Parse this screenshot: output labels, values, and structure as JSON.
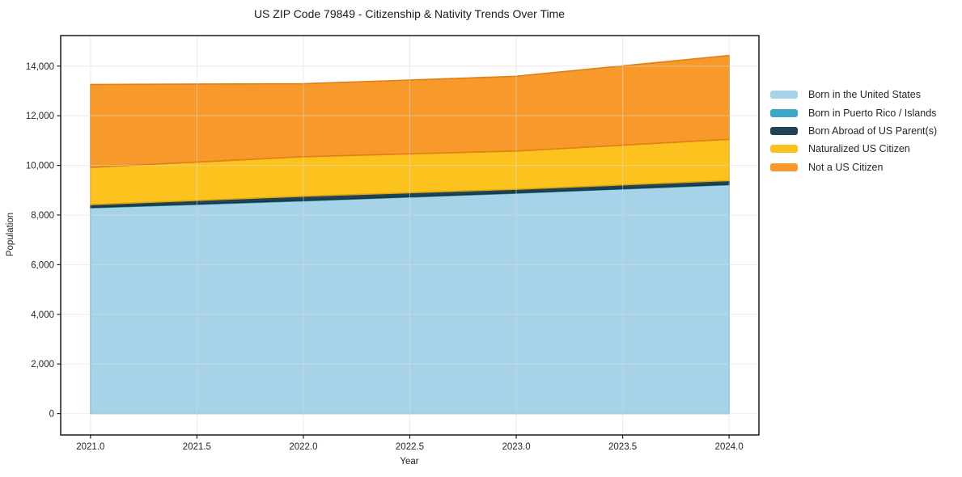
{
  "chart_data": {
    "type": "area",
    "stacked": true,
    "title": "US ZIP Code 79849 - Citizenship & Nativity Trends Over Time",
    "xlabel": "Year",
    "ylabel": "Population",
    "x": [
      2021,
      2022,
      2023,
      2024
    ],
    "series": [
      {
        "name": "Born in the United States",
        "color": "#A6D3E8",
        "edge": "#85BDD9",
        "values": [
          8290,
          8570,
          8880,
          9220
        ]
      },
      {
        "name": "Born in Puerto Rico / Islands",
        "color": "#3DA7C4",
        "edge": "#338FA8",
        "values": [
          20,
          20,
          20,
          20
        ]
      },
      {
        "name": "Born Abroad of US Parent(s)",
        "color": "#1F4456",
        "edge": "#193845",
        "values": [
          110,
          170,
          140,
          150
        ]
      },
      {
        "name": "Naturalized US Citizen",
        "color": "#FCC31F",
        "edge": "#E0A712",
        "values": [
          1500,
          1590,
          1540,
          1660
        ]
      },
      {
        "name": "Not a US Citizen",
        "color": "#F8992B",
        "edge": "#E07F16",
        "values": [
          3340,
          2940,
          3010,
          3380
        ]
      }
    ],
    "stacked_totals": [
      13260,
      13290,
      13590,
      14430
    ],
    "xlim": [
      2020.86,
      2024.14
    ],
    "ylim": [
      -860,
      15230
    ],
    "xticks": [
      2021.0,
      2021.5,
      2022.0,
      2022.5,
      2023.0,
      2023.5,
      2024.0
    ],
    "xtick_labels": [
      "2021.0",
      "2021.5",
      "2022.0",
      "2022.5",
      "2023.0",
      "2023.5",
      "2024.0"
    ],
    "yticks": [
      0,
      2000,
      4000,
      6000,
      8000,
      10000,
      12000,
      14000
    ],
    "ytick_labels": [
      "0",
      "2,000",
      "4,000",
      "6,000",
      "8,000",
      "10,000",
      "12,000",
      "14,000"
    ],
    "grid": true,
    "legend_position": "right-outside"
  },
  "colors": {
    "background": "#ffffff",
    "spine": "#1a1a1a",
    "grid": "#dcdcdc",
    "tick_text": "#262626"
  }
}
